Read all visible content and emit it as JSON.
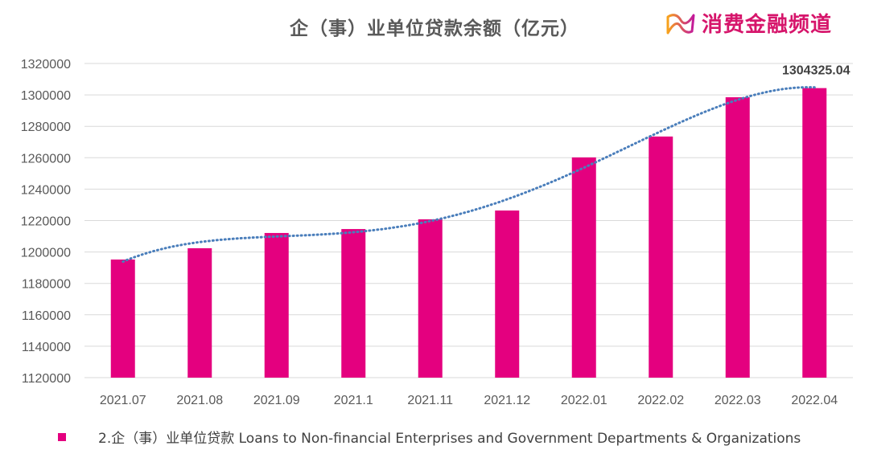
{
  "chart_data": {
    "type": "bar",
    "title": "企（事）业单位贷款余额（亿元）",
    "categories": [
      "2021.07",
      "2021.08",
      "2021.09",
      "2021.1",
      "2021.11",
      "2021.12",
      "2022.01",
      "2022.02",
      "2022.03",
      "2022.04"
    ],
    "series": [
      {
        "name": "2.企（事）业单位贷款 Loans to Non-financial Enterprises and  Government Departments & Organizations",
        "values": [
          1195200,
          1202400,
          1212100,
          1214600,
          1220800,
          1226400,
          1260200,
          1273500,
          1298500,
          1304325.04
        ],
        "color": "#e4007f"
      }
    ],
    "data_labels": [
      {
        "category": "2022.04",
        "text": "1304325.04"
      }
    ],
    "trendline": {
      "type": "polynomial",
      "style": "dotted",
      "color": "#4a7ebb"
    },
    "ylim": [
      1120000,
      1320000
    ],
    "yticks": [
      "1120000",
      "1140000",
      "1160000",
      "1180000",
      "1200000",
      "1220000",
      "1240000",
      "1260000",
      "1280000",
      "1300000",
      "1320000"
    ],
    "grid": true,
    "legend": "bottom-left"
  },
  "logo": {
    "text": "消费金融频道"
  }
}
